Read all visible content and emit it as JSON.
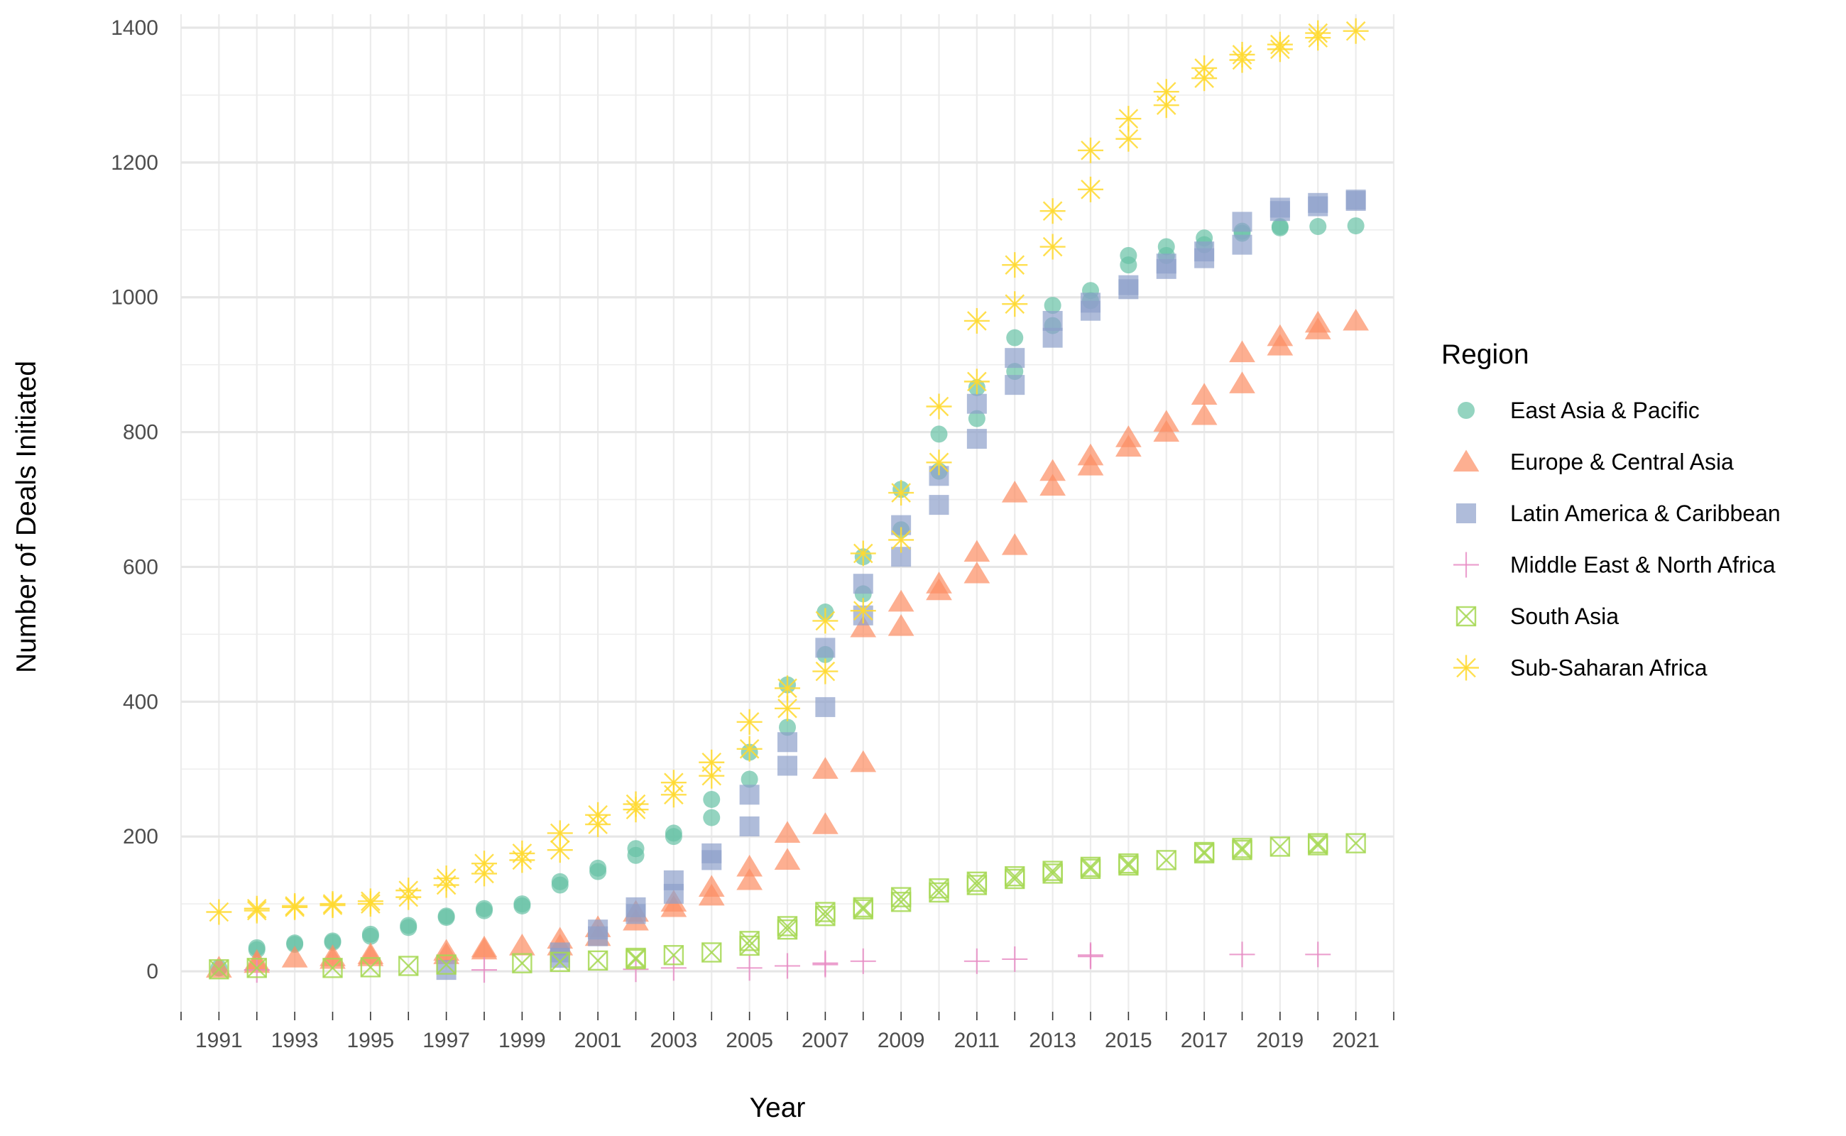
{
  "chart_data": {
    "type": "scatter",
    "title": "",
    "xlabel": "Year",
    "ylabel": "Number of Deals Initiated",
    "xlim": [
      1990,
      2022
    ],
    "ylim": [
      -60,
      1420
    ],
    "x_ticks": [
      1991,
      1993,
      1995,
      1997,
      1999,
      2001,
      2003,
      2005,
      2007,
      2009,
      2011,
      2013,
      2015,
      2017,
      2019,
      2021
    ],
    "y_ticks": [
      0,
      200,
      400,
      600,
      800,
      1000,
      1200,
      1400
    ],
    "grid": true,
    "legend": {
      "title": "Region",
      "position": "right"
    },
    "series": [
      {
        "name": "East Asia & Pacific",
        "color": "#66c2a5",
        "marker": "circle",
        "points": [
          [
            1991,
            5
          ],
          [
            1992,
            35
          ],
          [
            1992,
            32
          ],
          [
            1993,
            40
          ],
          [
            1993,
            42
          ],
          [
            1994,
            45
          ],
          [
            1994,
            43
          ],
          [
            1995,
            52
          ],
          [
            1995,
            55
          ],
          [
            1996,
            65
          ],
          [
            1996,
            68
          ],
          [
            1997,
            80
          ],
          [
            1997,
            82
          ],
          [
            1998,
            90
          ],
          [
            1998,
            93
          ],
          [
            1999,
            97
          ],
          [
            1999,
            100
          ],
          [
            2000,
            128
          ],
          [
            2000,
            133
          ],
          [
            2001,
            148
          ],
          [
            2001,
            153
          ],
          [
            2002,
            172
          ],
          [
            2002,
            182
          ],
          [
            2003,
            200
          ],
          [
            2003,
            205
          ],
          [
            2004,
            228
          ],
          [
            2004,
            255
          ],
          [
            2005,
            285
          ],
          [
            2005,
            325
          ],
          [
            2006,
            362
          ],
          [
            2006,
            425
          ],
          [
            2007,
            470
          ],
          [
            2007,
            533
          ],
          [
            2008,
            560
          ],
          [
            2008,
            615
          ],
          [
            2009,
            655
          ],
          [
            2009,
            715
          ],
          [
            2010,
            742
          ],
          [
            2010,
            797
          ],
          [
            2011,
            820
          ],
          [
            2011,
            866
          ],
          [
            2012,
            890
          ],
          [
            2012,
            940
          ],
          [
            2013,
            958
          ],
          [
            2013,
            988
          ],
          [
            2014,
            995
          ],
          [
            2014,
            1010
          ],
          [
            2015,
            1048
          ],
          [
            2015,
            1062
          ],
          [
            2016,
            1062
          ],
          [
            2016,
            1075
          ],
          [
            2017,
            1078
          ],
          [
            2017,
            1088
          ],
          [
            2018,
            1095
          ],
          [
            2018,
            1098
          ],
          [
            2019,
            1103
          ],
          [
            2019,
            1105
          ],
          [
            2020,
            1105
          ],
          [
            2021,
            1106
          ]
        ]
      },
      {
        "name": "Europe & Central Asia",
        "color": "#fc8d62",
        "marker": "triangle",
        "points": [
          [
            1991,
            5
          ],
          [
            1992,
            12
          ],
          [
            1992,
            15
          ],
          [
            1993,
            20
          ],
          [
            1994,
            18
          ],
          [
            1994,
            22
          ],
          [
            1995,
            22
          ],
          [
            1995,
            25
          ],
          [
            1997,
            25
          ],
          [
            1997,
            30
          ],
          [
            1998,
            32
          ],
          [
            1998,
            35
          ],
          [
            1999,
            38
          ],
          [
            2000,
            38
          ],
          [
            2000,
            48
          ],
          [
            2001,
            52
          ],
          [
            2001,
            65
          ],
          [
            2002,
            75
          ],
          [
            2002,
            88
          ],
          [
            2003,
            95
          ],
          [
            2003,
            103
          ],
          [
            2004,
            112
          ],
          [
            2004,
            125
          ],
          [
            2005,
            135
          ],
          [
            2005,
            155
          ],
          [
            2006,
            165
          ],
          [
            2006,
            205
          ],
          [
            2007,
            218
          ],
          [
            2007,
            300
          ],
          [
            2008,
            310
          ],
          [
            2008,
            510
          ],
          [
            2009,
            512
          ],
          [
            2009,
            548
          ],
          [
            2010,
            565
          ],
          [
            2010,
            575
          ],
          [
            2011,
            590
          ],
          [
            2011,
            622
          ],
          [
            2012,
            632
          ],
          [
            2012,
            710
          ],
          [
            2013,
            720
          ],
          [
            2013,
            742
          ],
          [
            2014,
            750
          ],
          [
            2014,
            765
          ],
          [
            2015,
            778
          ],
          [
            2015,
            792
          ],
          [
            2016,
            800
          ],
          [
            2016,
            815
          ],
          [
            2017,
            825
          ],
          [
            2017,
            855
          ],
          [
            2018,
            872
          ],
          [
            2018,
            918
          ],
          [
            2019,
            928
          ],
          [
            2019,
            942
          ],
          [
            2020,
            952
          ],
          [
            2020,
            962
          ],
          [
            2021,
            965
          ]
        ]
      },
      {
        "name": "Latin America & Caribbean",
        "color": "#8da0cb",
        "marker": "square",
        "points": [
          [
            1997,
            2
          ],
          [
            2000,
            20
          ],
          [
            2000,
            28
          ],
          [
            2001,
            52
          ],
          [
            2001,
            62
          ],
          [
            2002,
            85
          ],
          [
            2002,
            95
          ],
          [
            2003,
            115
          ],
          [
            2003,
            135
          ],
          [
            2004,
            165
          ],
          [
            2004,
            175
          ],
          [
            2005,
            215
          ],
          [
            2005,
            262
          ],
          [
            2006,
            305
          ],
          [
            2006,
            340
          ],
          [
            2007,
            392
          ],
          [
            2007,
            480
          ],
          [
            2008,
            528
          ],
          [
            2008,
            575
          ],
          [
            2009,
            615
          ],
          [
            2009,
            662
          ],
          [
            2010,
            692
          ],
          [
            2010,
            735
          ],
          [
            2011,
            790
          ],
          [
            2011,
            842
          ],
          [
            2012,
            870
          ],
          [
            2012,
            910
          ],
          [
            2013,
            940
          ],
          [
            2013,
            965
          ],
          [
            2014,
            980
          ],
          [
            2014,
            992
          ],
          [
            2015,
            1012
          ],
          [
            2015,
            1018
          ],
          [
            2016,
            1042
          ],
          [
            2016,
            1050
          ],
          [
            2017,
            1058
          ],
          [
            2017,
            1068
          ],
          [
            2018,
            1078
          ],
          [
            2018,
            1112
          ],
          [
            2019,
            1128
          ],
          [
            2019,
            1133
          ],
          [
            2020,
            1135
          ],
          [
            2020,
            1140
          ],
          [
            2021,
            1143
          ],
          [
            2021,
            1145
          ]
        ]
      },
      {
        "name": "Middle East & North Africa",
        "color": "#e78ac3",
        "marker": "plus",
        "points": [
          [
            1992,
            2
          ],
          [
            1998,
            2
          ],
          [
            2002,
            3
          ],
          [
            2003,
            5
          ],
          [
            2005,
            5
          ],
          [
            2006,
            8
          ],
          [
            2007,
            10
          ],
          [
            2007,
            12
          ],
          [
            2008,
            15
          ],
          [
            2011,
            15
          ],
          [
            2012,
            18
          ],
          [
            2014,
            22
          ],
          [
            2014,
            24
          ],
          [
            2018,
            25
          ],
          [
            2020,
            25
          ]
        ]
      },
      {
        "name": "South Asia",
        "color": "#a6d854",
        "marker": "boxcross",
        "points": [
          [
            1991,
            3
          ],
          [
            1992,
            5
          ],
          [
            1994,
            5
          ],
          [
            1995,
            6
          ],
          [
            1996,
            8
          ],
          [
            1997,
            10
          ],
          [
            1999,
            12
          ],
          [
            2000,
            14
          ],
          [
            2001,
            16
          ],
          [
            2002,
            18
          ],
          [
            2002,
            20
          ],
          [
            2003,
            24
          ],
          [
            2004,
            28
          ],
          [
            2005,
            38
          ],
          [
            2005,
            45
          ],
          [
            2006,
            62
          ],
          [
            2006,
            67
          ],
          [
            2007,
            82
          ],
          [
            2007,
            88
          ],
          [
            2008,
            92
          ],
          [
            2008,
            95
          ],
          [
            2009,
            103
          ],
          [
            2009,
            110
          ],
          [
            2010,
            117
          ],
          [
            2010,
            123
          ],
          [
            2011,
            128
          ],
          [
            2011,
            133
          ],
          [
            2012,
            137
          ],
          [
            2012,
            141
          ],
          [
            2013,
            145
          ],
          [
            2013,
            149
          ],
          [
            2014,
            152
          ],
          [
            2014,
            155
          ],
          [
            2015,
            157
          ],
          [
            2015,
            160
          ],
          [
            2016,
            165
          ],
          [
            2017,
            175
          ],
          [
            2017,
            177
          ],
          [
            2018,
            180
          ],
          [
            2018,
            183
          ],
          [
            2019,
            185
          ],
          [
            2020,
            187
          ],
          [
            2020,
            190
          ],
          [
            2021,
            190
          ]
        ]
      },
      {
        "name": "Sub-Saharan Africa",
        "color": "#ffd92f",
        "marker": "asterisk",
        "points": [
          [
            1991,
            88
          ],
          [
            1992,
            90
          ],
          [
            1992,
            93
          ],
          [
            1993,
            95
          ],
          [
            1993,
            97
          ],
          [
            1994,
            98
          ],
          [
            1994,
            100
          ],
          [
            1995,
            100
          ],
          [
            1995,
            104
          ],
          [
            1996,
            110
          ],
          [
            1996,
            120
          ],
          [
            1997,
            128
          ],
          [
            1997,
            138
          ],
          [
            1998,
            145
          ],
          [
            1998,
            160
          ],
          [
            1999,
            165
          ],
          [
            1999,
            175
          ],
          [
            2000,
            180
          ],
          [
            2000,
            205
          ],
          [
            2001,
            218
          ],
          [
            2001,
            232
          ],
          [
            2002,
            240
          ],
          [
            2002,
            248
          ],
          [
            2003,
            262
          ],
          [
            2003,
            280
          ],
          [
            2004,
            290
          ],
          [
            2004,
            310
          ],
          [
            2005,
            330
          ],
          [
            2005,
            370
          ],
          [
            2006,
            390
          ],
          [
            2006,
            420
          ],
          [
            2007,
            445
          ],
          [
            2007,
            520
          ],
          [
            2008,
            535
          ],
          [
            2008,
            620
          ],
          [
            2009,
            640
          ],
          [
            2009,
            710
          ],
          [
            2010,
            755
          ],
          [
            2010,
            838
          ],
          [
            2011,
            875
          ],
          [
            2011,
            965
          ],
          [
            2012,
            990
          ],
          [
            2012,
            1048
          ],
          [
            2013,
            1075
          ],
          [
            2013,
            1128
          ],
          [
            2014,
            1160
          ],
          [
            2014,
            1218
          ],
          [
            2015,
            1235
          ],
          [
            2015,
            1265
          ],
          [
            2016,
            1285
          ],
          [
            2016,
            1305
          ],
          [
            2017,
            1325
          ],
          [
            2017,
            1340
          ],
          [
            2018,
            1352
          ],
          [
            2018,
            1360
          ],
          [
            2019,
            1368
          ],
          [
            2019,
            1375
          ],
          [
            2020,
            1385
          ],
          [
            2020,
            1392
          ],
          [
            2021,
            1395
          ]
        ]
      }
    ]
  }
}
